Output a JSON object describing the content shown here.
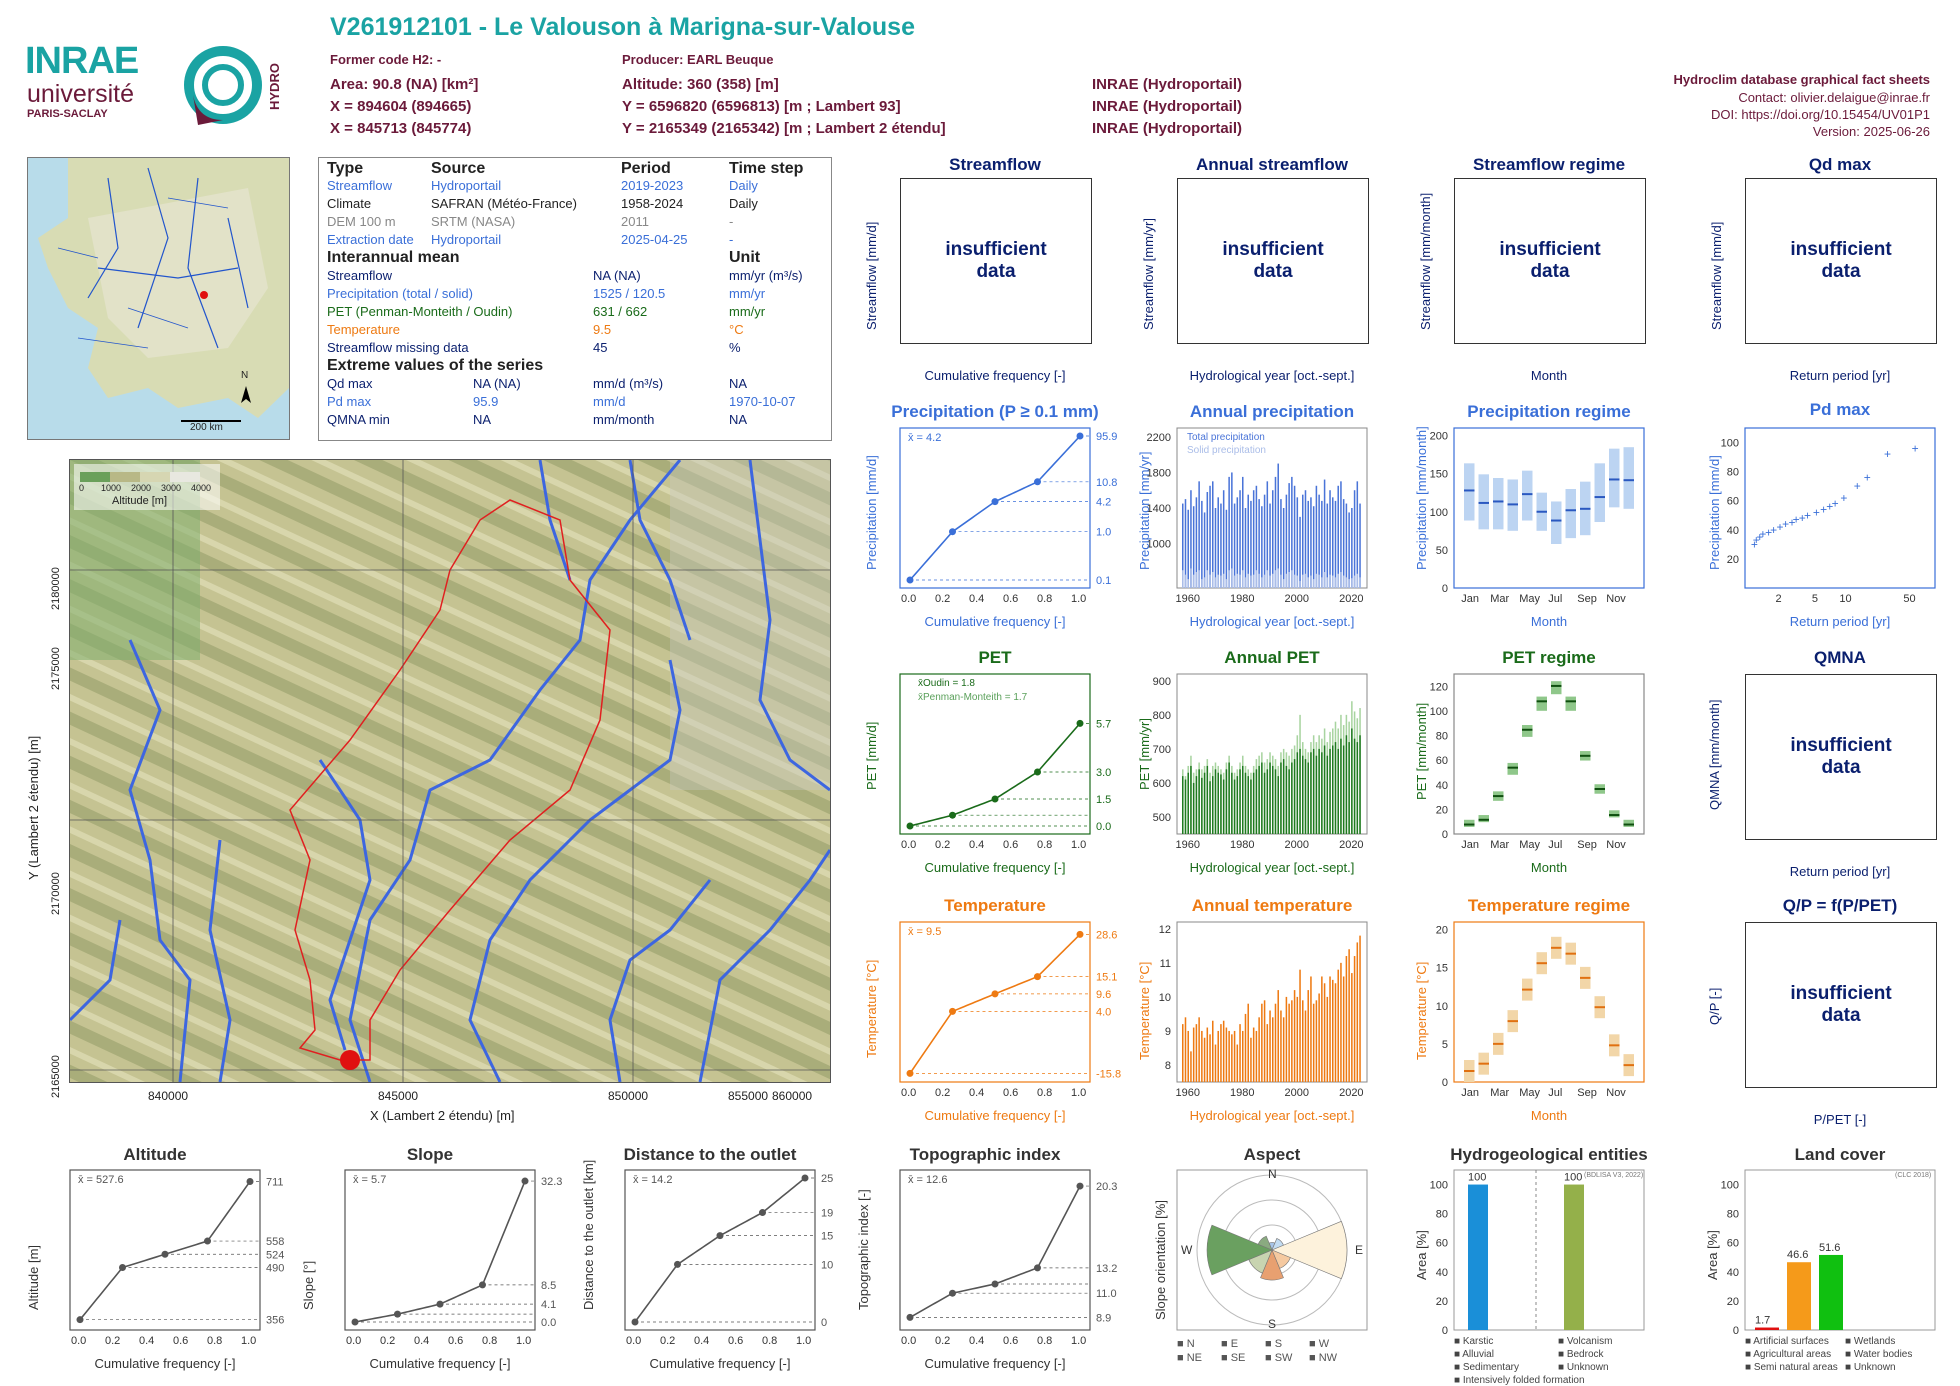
{
  "header": {
    "title": "V261912101 - Le Valouson à Marigna-sur-Valouse",
    "former_code": "Former code H2: -",
    "producer": "Producer: EARL Beuque",
    "area": "Area: 90.8 (NA) [km²]",
    "altitude": "Altitude: 360 (358) [m]",
    "x93": "X = 894604 (894665)",
    "y93": "Y = 6596820 (6596813) [m ; Lambert 93]",
    "x2": "X = 845713 (845774)",
    "y2": "Y = 2165349 (2165342) [m ; Lambert 2 étendu]",
    "source1": "INRAE (Hydroportail)",
    "source2": "INRAE (Hydroportail)",
    "source3": "INRAE (Hydroportail)",
    "db_title": "Hydroclim database graphical fact sheets",
    "contact": "Contact: olivier.delaigue@inrae.fr",
    "doi": "DOI: https://doi.org/10.15454/UV01P1",
    "version": "Version: 2025-06-26",
    "logo_inrae": "INRAE",
    "logo_univ": "université",
    "logo_paris": "PARIS-SACLAY",
    "logo_hydro": "HYDRO"
  },
  "colors": {
    "title": "#1aa3a3",
    "maroon": "#6b1a3a",
    "navy": "#0a1f6e",
    "blue": "#3a6fd8",
    "green": "#1a6b1a",
    "orange": "#ee7a12"
  },
  "info": {
    "h_type": "Type",
    "h_source": "Source",
    "h_period": "Period",
    "h_step": "Time step",
    "rows": [
      {
        "type": "Streamflow",
        "source": "Hydroportail",
        "period": "2019-2023",
        "step": "Daily"
      },
      {
        "type": "Climate",
        "source": "SAFRAN (Météo-France)",
        "period": "1958-2024",
        "step": "Daily"
      },
      {
        "type": "DEM 100 m",
        "source": "SRTM (NASA)",
        "period": "2011",
        "step": "-"
      },
      {
        "type": "Extraction date",
        "source": "Hydroportail",
        "period": "2025-04-25",
        "step": "-"
      }
    ],
    "h_mean": "Interannual mean",
    "h_unit": "Unit",
    "mean_rows": [
      {
        "name": "Streamflow",
        "value": "NA (NA)",
        "unit": "mm/yr (m³/s)"
      },
      {
        "name": "Precipitation (total / solid)",
        "value": "1525 / 120.5",
        "unit": "mm/yr"
      },
      {
        "name": "PET (Penman-Monteith / Oudin)",
        "value": "631 / 662",
        "unit": "mm/yr"
      },
      {
        "name": "Temperature",
        "value": "9.5",
        "unit": "°C"
      },
      {
        "name": "Streamflow missing data",
        "value": "45",
        "unit": "%"
      }
    ],
    "h_extreme": "Extreme values of the series",
    "ext_rows": [
      {
        "name": "Qd max",
        "v1": "NA (NA)",
        "unit": "mm/d (m³/s)",
        "date": "NA"
      },
      {
        "name": "Pd max",
        "v1": "95.9",
        "unit": "mm/d",
        "date": "1970-10-07"
      },
      {
        "name": "QMNA min",
        "v1": "NA",
        "unit": "mm/month",
        "date": "NA"
      }
    ]
  },
  "minimap": {
    "scale": "200 km",
    "north": "N"
  },
  "map": {
    "legend_ticks": [
      "0",
      "1000",
      "2000",
      "3000",
      "4000"
    ],
    "legend_title": "Altitude [m]",
    "xticks": [
      "840000",
      "845000",
      "850000",
      "855000",
      "860000"
    ],
    "yticks": [
      "2165000",
      "2170000",
      "2175000",
      "2180000"
    ],
    "xlabel": "X (Lambert 2 étendu) [m]",
    "ylabel": "Y (Lambert 2 étendu) [m]"
  },
  "panels": {
    "streamflow": {
      "title": "Streamflow",
      "ylabel": "Streamflow [mm/d]",
      "xlabel": "Cumulative frequency [-]",
      "msg": "insufficient data"
    },
    "annual_streamflow": {
      "title": "Annual streamflow",
      "ylabel": "Streamflow [mm/yr]",
      "xlabel": "Hydrological year [oct.-sept.]",
      "msg": "insufficient data"
    },
    "streamflow_regime": {
      "title": "Streamflow regime",
      "ylabel": "Streamflow [mm/month]",
      "xlabel": "Month",
      "msg": "insufficient data"
    },
    "qd_max": {
      "title": "Qd max",
      "ylabel": "Streamflow [mm/d]",
      "xlabel": "Return period [yr]",
      "msg": "insufficient data"
    },
    "precip": {
      "title": "Precipitation (P ≥ 0.1 mm)",
      "ylabel": "Precipitation [mm/d]",
      "xlabel": "Cumulative frequency [-]",
      "mean": "x̄ = 4.2"
    },
    "annual_precip": {
      "title": "Annual precipitation",
      "ylabel": "Precipitation [mm/yr]",
      "xlabel": "Hydrological year [oct.-sept.]",
      "legend": [
        "Total precipitation",
        "Solid precipitation"
      ]
    },
    "precip_regime": {
      "title": "Precipitation regime",
      "ylabel": "Precipitation [mm/month]",
      "xlabel": "Month"
    },
    "pd_max": {
      "title": "Pd max",
      "ylabel": "Precipitation [mm/d]",
      "xlabel": "Return period [yr]"
    },
    "pet": {
      "title": "PET",
      "ylabel": "PET [mm/d]",
      "xlabel": "Cumulative frequency [-]",
      "legend": [
        "x̄Oudin = 1.8",
        "x̄Penman-Monteith = 1.7"
      ]
    },
    "annual_pet": {
      "title": "Annual PET",
      "ylabel": "PET [mm/yr]",
      "xlabel": "Hydrological year [oct.-sept.]"
    },
    "pet_regime": {
      "title": "PET regime",
      "ylabel": "PET [mm/month]",
      "xlabel": "Month"
    },
    "qmna": {
      "title": "QMNA",
      "ylabel": "QMNA [mm/month]",
      "xlabel": "Return period [yr]",
      "msg": "insufficient data"
    },
    "temp": {
      "title": "Temperature",
      "ylabel": "Temperature [°C]",
      "xlabel": "Cumulative frequency [-]",
      "mean": "x̄ = 9.5"
    },
    "annual_temp": {
      "title": "Annual temperature",
      "ylabel": "Temperature [°C]",
      "xlabel": "Hydrological year [oct.-sept.]"
    },
    "temp_regime": {
      "title": "Temperature regime",
      "ylabel": "Temperature [°C]",
      "xlabel": "Month"
    },
    "qp": {
      "title": "Q/P = f(P/PET)",
      "ylabel": "Q/P [-]",
      "xlabel": "P/PET [-]",
      "msg": "insufficient data"
    },
    "altitude": {
      "title": "Altitude",
      "ylabel": "Altitude [m]",
      "xlabel": "Cumulative frequency [-]",
      "mean": "x̄ = 527.6"
    },
    "slope": {
      "title": "Slope",
      "ylabel": "Slope [°]",
      "xlabel": "Cumulative frequency [-]",
      "mean": "x̄ = 5.7"
    },
    "distance": {
      "title": "Distance to the outlet",
      "ylabel": "Distance to the outlet [km]",
      "xlabel": "Cumulative frequency [-]",
      "mean": "x̄ = 14.2"
    },
    "topo": {
      "title": "Topographic index",
      "ylabel": "Topographic index [-]",
      "xlabel": "Cumulative frequency [-]",
      "mean": "x̄ = 12.6"
    },
    "aspect": {
      "title": "Aspect",
      "ylabel": "Slope orientation [%]",
      "legend": [
        "N",
        "E",
        "S",
        "W",
        "NE",
        "SE",
        "SW",
        "NW"
      ]
    },
    "hydrogeo": {
      "title": "Hydrogeological entities",
      "ylabel": "Area [%]",
      "note": "(BDLISA V3, 2022)",
      "legend": [
        "Karstic",
        "Volcanism",
        "Alluvial",
        "Bedrock",
        "Sedimentary",
        "Unknown",
        "Intensively folded formation"
      ]
    },
    "landcover": {
      "title": "Land cover",
      "ylabel": "Area [%]",
      "note": "(CLC 2018)",
      "legend": [
        "Artificial surfaces",
        "Wetlands",
        "Agricultural areas",
        "Water bodies",
        "Semi natural areas",
        "Unknown"
      ]
    }
  },
  "chart_data": [
    {
      "type": "line",
      "id": "precip_cdf",
      "x": [
        0,
        0.25,
        0.5,
        0.75,
        1
      ],
      "y": [
        0.1,
        1.0,
        4.2,
        10.8,
        95.9
      ],
      "yscale": "log",
      "ylim": [
        0.1,
        95.9
      ],
      "right_labels": [
        "95.9",
        "10.8",
        "4.2",
        "1.0",
        "0.1"
      ],
      "color": "#3a6fd8"
    },
    {
      "type": "bar",
      "id": "annual_precip",
      "x_start": 1959,
      "xlim": [
        1958,
        2024
      ],
      "ylim": [
        500,
        2300
      ],
      "xticks": [
        "1960",
        "1980",
        "2000",
        "2020"
      ],
      "yticks": [
        "800",
        "1000",
        "1200",
        "1400",
        "1600",
        "1800",
        "2000",
        "2200"
      ],
      "values": [
        1450,
        1500,
        1380,
        1600,
        1420,
        1520,
        1700,
        1480,
        1350,
        1580,
        1650,
        1700,
        1400,
        1520,
        1450,
        1600,
        1380,
        1750,
        1800,
        1450,
        1520,
        1600,
        1750,
        1400,
        1550,
        1480,
        1600,
        1650,
        1500,
        1420,
        1550,
        1700,
        1450,
        1600,
        1750,
        1900,
        1500,
        1400,
        1550,
        1680,
        1750,
        1650,
        1520,
        1300,
        1550,
        1600,
        1480,
        1520,
        1420,
        1650,
        1550,
        1480,
        1720,
        1450,
        1600,
        1520,
        1480,
        1650,
        1700,
        1500,
        1450,
        1350,
        1400,
        1600,
        1700,
        1450
      ],
      "solid": [
        700,
        650,
        600,
        720,
        650,
        680,
        700,
        600,
        620,
        700,
        650,
        680,
        620,
        650,
        640,
        660,
        600,
        700,
        720,
        640,
        660,
        650,
        700,
        620,
        660,
        640,
        650,
        700,
        660,
        620,
        650,
        700,
        640,
        660,
        700,
        720,
        650,
        600,
        660,
        680,
        700,
        650,
        640,
        580,
        650,
        660,
        620,
        640,
        600,
        660,
        650,
        620,
        680,
        620,
        650,
        640,
        620,
        660,
        680,
        640,
        620,
        600,
        610,
        640,
        660,
        620
      ]
    },
    {
      "type": "box",
      "id": "precip_regime",
      "months": [
        "Jan",
        "Feb",
        "Mar",
        "Apr",
        "May",
        "Jun",
        "Jul",
        "Aug",
        "Sep",
        "Oct",
        "Nov",
        "Dec"
      ],
      "median": [
        133,
        116,
        118,
        114,
        128,
        104,
        92,
        106,
        108,
        124,
        148,
        147
      ],
      "q_lo": [
        92,
        80,
        80,
        78,
        92,
        78,
        60,
        68,
        72,
        90,
        110,
        108
      ],
      "q_hi": [
        170,
        155,
        150,
        148,
        160,
        130,
        118,
        135,
        145,
        170,
        190,
        192
      ],
      "ylim": [
        0,
        210
      ]
    },
    {
      "type": "scatter",
      "id": "pd_max",
      "x": [
        1.05,
        1.1,
        1.2,
        1.3,
        1.5,
        1.7,
        2,
        2.3,
        2.7,
        3,
        3.5,
        4,
        5,
        6,
        7,
        8,
        10,
        14,
        18,
        30,
        60
      ],
      "y": [
        30,
        33,
        35,
        37,
        38,
        40,
        42,
        44,
        45,
        47,
        48,
        50,
        52,
        54,
        56,
        58,
        62,
        70,
        76,
        92,
        96
      ],
      "xscale": "log",
      "ylim": [
        0,
        110
      ]
    },
    {
      "type": "line",
      "id": "pet_cdf",
      "x": [
        0,
        0.25,
        0.5,
        0.75,
        1
      ],
      "y": [
        0.0,
        0.6,
        1.5,
        3.0,
        5.7
      ],
      "right_labels": [
        "5.7",
        "3.0",
        "1.5",
        "0.0"
      ],
      "ylim": [
        0,
        8
      ]
    },
    {
      "type": "bar",
      "id": "annual_pet",
      "x_start": 1959,
      "ylim": [
        450,
        920
      ],
      "xticks": [
        "1960",
        "1980",
        "2000",
        "2020"
      ],
      "yticks": [
        "500",
        "600",
        "700",
        "800",
        "900"
      ],
      "pm": [
        620,
        610,
        630,
        650,
        600,
        620,
        640,
        615,
        630,
        650,
        605,
        620,
        640,
        630,
        625,
        610,
        640,
        660,
        630,
        610,
        620,
        640,
        650,
        630,
        620,
        610,
        630,
        640,
        650,
        660,
        630,
        640,
        660,
        650,
        640,
        620,
        660,
        670,
        650,
        640,
        660,
        670,
        690,
        700,
        680,
        670,
        660,
        690,
        700,
        680,
        700,
        690,
        710,
        680,
        700,
        710,
        720,
        700,
        730,
        710,
        740,
        720,
        760,
        730,
        720,
        740
      ],
      "oudin": [
        640,
        620,
        650,
        680,
        630,
        640,
        660,
        640,
        650,
        670,
        630,
        650,
        660,
        650,
        640,
        630,
        660,
        680,
        650,
        630,
        640,
        660,
        680,
        650,
        640,
        630,
        650,
        670,
        680,
        690,
        660,
        670,
        690,
        680,
        670,
        650,
        690,
        700,
        690,
        680,
        700,
        710,
        740,
        800,
        720,
        700,
        690,
        720,
        740,
        720,
        740,
        730,
        760,
        720,
        750,
        760,
        780,
        760,
        800,
        770,
        800,
        780,
        840,
        810,
        790,
        820
      ]
    },
    {
      "type": "box",
      "id": "pet_regime",
      "months": [
        "Jan",
        "Feb",
        "Mar",
        "Apr",
        "May",
        "Jun",
        "Jul",
        "Aug",
        "Sep",
        "Oct",
        "Nov",
        "Dec"
      ],
      "oudin": [
        8,
        12,
        32,
        56,
        88,
        112,
        125,
        112,
        66,
        38,
        16,
        8
      ],
      "pm": [
        6,
        10,
        28,
        50,
        82,
        104,
        118,
        104,
        62,
        34,
        14,
        6
      ],
      "ylim": [
        0,
        130
      ]
    },
    {
      "type": "line",
      "id": "temp_cdf",
      "x": [
        0,
        0.25,
        0.5,
        0.75,
        1
      ],
      "y": [
        -15.8,
        4.0,
        9.6,
        15.1,
        28.6
      ],
      "right_labels": [
        "28.6",
        "15.1",
        "9.6",
        "4.0",
        "-15.8"
      ],
      "ylim": [
        -16,
        30
      ]
    },
    {
      "type": "bar",
      "id": "annual_temp",
      "x_start": 1959,
      "ylim": [
        7.5,
        12.2
      ],
      "xticks": [
        "1960",
        "1980",
        "2000",
        "2020"
      ],
      "yticks": [
        "8",
        "9",
        "10",
        "11",
        "12"
      ],
      "values": [
        9.2,
        9.4,
        9.0,
        8.4,
        9.1,
        9.2,
        9.4,
        9.0,
        8.8,
        9.1,
        8.9,
        9.3,
        8.6,
        9.0,
        9.2,
        9.3,
        9.1,
        9.0,
        8.9,
        9.0,
        8.6,
        9.2,
        9.0,
        9.5,
        9.8,
        8.8,
        9.1,
        9.0,
        9.4,
        9.8,
        9.9,
        9.2,
        9.6,
        9.4,
        9.8,
        10.2,
        9.6,
        9.4,
        10.0,
        9.8,
        9.9,
        10.2,
        10.0,
        10.8,
        9.9,
        9.6,
        10.2,
        10.6,
        9.8,
        9.9,
        10.1,
        10.6,
        10.4,
        10.0,
        10.6,
        10.5,
        10.4,
        10.8,
        11.0,
        10.6,
        11.2,
        11.4,
        10.7,
        11.2,
        11.6,
        11.8
      ]
    },
    {
      "type": "box",
      "id": "temp_regime",
      "months": [
        "Jan",
        "Feb",
        "Mar",
        "Apr",
        "May",
        "Jun",
        "Jul",
        "Aug",
        "Sep",
        "Oct",
        "Nov",
        "Dec"
      ],
      "median": [
        1.5,
        2.5,
        5.2,
        8.3,
        12.6,
        16.2,
        18.3,
        17.5,
        14.2,
        10.2,
        5.0,
        2.3
      ],
      "ylim": [
        0,
        21
      ]
    },
    {
      "type": "line",
      "id": "altitude_cdf",
      "x": [
        0,
        0.25,
        0.5,
        0.75,
        1
      ],
      "y": [
        356,
        490,
        524,
        558,
        711
      ],
      "right_labels": [
        "711",
        "558",
        "524",
        "490",
        "356"
      ],
      "ylim": [
        350,
        720
      ]
    },
    {
      "type": "line",
      "id": "slope_cdf",
      "x": [
        0,
        0.25,
        0.5,
        0.75,
        1
      ],
      "y": [
        0.0,
        1.8,
        4.1,
        8.5,
        32.3
      ],
      "right_labels": [
        "32.3",
        "8.5",
        "4.1",
        "0.0"
      ],
      "ylim": [
        0,
        33
      ]
    },
    {
      "type": "line",
      "id": "distance_cdf",
      "x": [
        0,
        0.25,
        0.5,
        0.75,
        1
      ],
      "y": [
        0,
        10,
        15,
        19,
        25
      ],
      "right_labels": [
        "25",
        "19",
        "15",
        "10",
        "0"
      ],
      "ylim": [
        0,
        25
      ]
    },
    {
      "type": "line",
      "id": "topo_cdf",
      "x": [
        0,
        0.25,
        0.5,
        0.75,
        1
      ],
      "y": [
        8.9,
        11.0,
        11.8,
        13.2,
        20.3
      ],
      "right_labels": [
        "20.3",
        "13.2",
        "11.0",
        "8.9"
      ],
      "ylim": [
        8.5,
        21
      ]
    },
    {
      "type": "pie",
      "id": "aspect",
      "directions": [
        "N",
        "NE",
        "E",
        "SE",
        "S",
        "SW",
        "W",
        "NW"
      ],
      "values": [
        3,
        5,
        30,
        8,
        12,
        10,
        26,
        6
      ],
      "rings": [
        "10",
        "20",
        "30"
      ]
    },
    {
      "type": "bar",
      "id": "hydrogeo",
      "categories": [
        "Karstic",
        "Sedimentary"
      ],
      "values": [
        100,
        100
      ],
      "ylim": [
        0,
        110
      ],
      "labels": [
        "100",
        "100"
      ]
    },
    {
      "type": "bar",
      "id": "landcover",
      "categories": [
        "Artificial surfaces",
        "Agricultural areas",
        "Semi natural areas"
      ],
      "values": [
        1.7,
        46.6,
        51.6
      ],
      "ylim": [
        0,
        110
      ],
      "labels": [
        "1.7",
        "46.6",
        "51.6"
      ]
    }
  ]
}
